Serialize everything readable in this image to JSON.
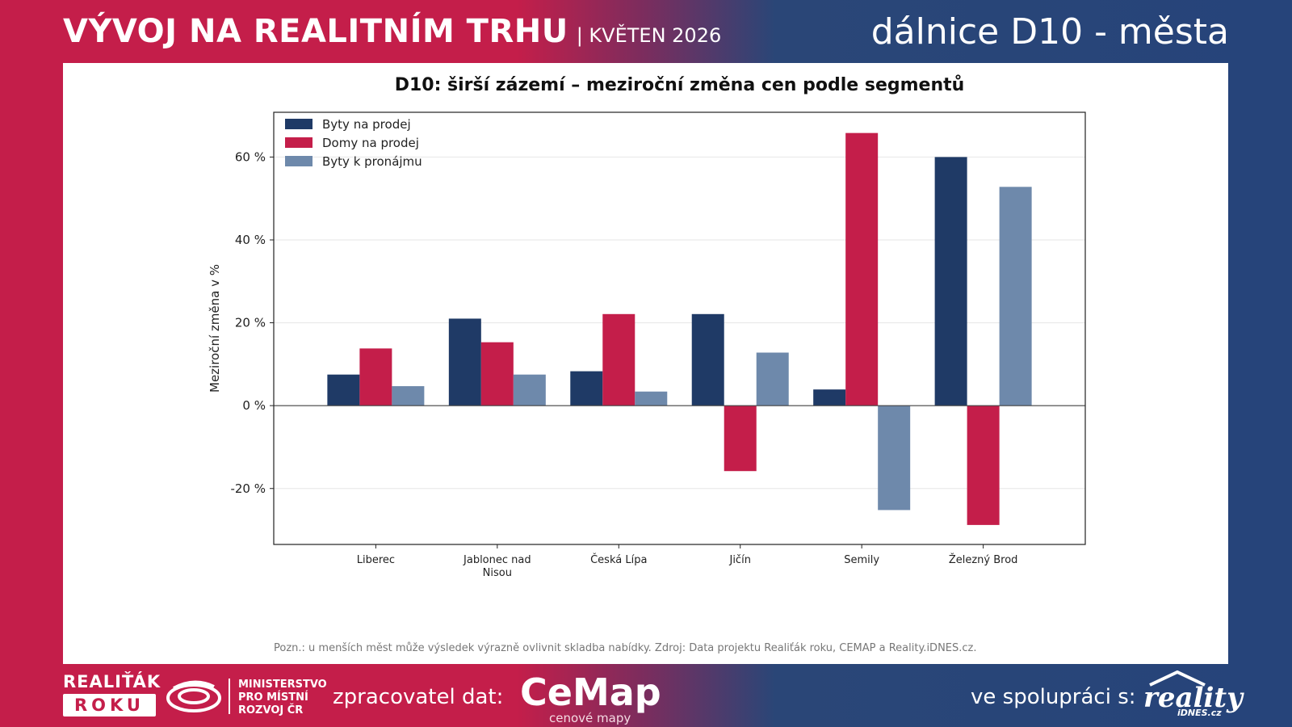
{
  "header": {
    "title": "VÝVOJ NA REALITNÍM TRHU",
    "subtitle": "| KVĚTEN 2026",
    "right_title": "dálnice D10 - města"
  },
  "note": "Pozn.: u menších měst může výsledek výrazně ovlivnit skladba nabídky. Zdroj: Data projektu Realiťák roku, CEMAP a Reality.iDNES.cz.",
  "footer": {
    "realitak_line1": "REALIŤÁK",
    "realitak_line2": "ROKU",
    "mmr_line1": "MINISTERSTVO",
    "mmr_line2": "PRO MÍSTNÍ",
    "mmr_line3": "ROZVOJ ČR",
    "processor_label": "zpracovatel dat:",
    "cemap_name": "CeMap",
    "cemap_tagline": "cenové mapy",
    "cooperation_label": "ve spolupráci s:",
    "reality_name": "reality",
    "reality_sub": "iDNES.cz"
  },
  "colors": {
    "byty_prodej": "#1f3a66",
    "domy_prodej": "#c41e4a",
    "byty_pronajem": "#6e89ab"
  },
  "chart_data": {
    "type": "bar",
    "title": "D10: širší zázemí – meziroční změna cen podle segmentů",
    "ylabel": "Meziroční změna v %",
    "xlabel": "",
    "categories": [
      [
        "Liberec"
      ],
      [
        "Jablonec nad",
        "Nisou"
      ],
      [
        "Česká Lípa"
      ],
      [
        "Jičín"
      ],
      [
        "Semily"
      ],
      [
        "Železný Brod"
      ]
    ],
    "series": [
      {
        "name": "Byty na prodej",
        "color": "#1f3a66",
        "values": [
          7.5,
          21,
          8.3,
          22.1,
          3.9,
          60
        ]
      },
      {
        "name": "Domy na prodej",
        "color": "#c41e4a",
        "values": [
          13.8,
          15.3,
          22.1,
          -15.8,
          65.8,
          -28.8
        ]
      },
      {
        "name": "Byty k pronájmu",
        "color": "#6e89ab",
        "values": [
          4.7,
          7.5,
          3.4,
          12.8,
          -25.2,
          52.8
        ]
      }
    ],
    "ylim": [
      -33.5,
      70.8
    ],
    "yticks": [
      -20,
      0,
      20,
      40,
      60
    ],
    "ytick_labels": [
      "-20 %",
      "0 %",
      "20 %",
      "40 %",
      "60 %"
    ],
    "grid": true,
    "legend_position": "top-left"
  }
}
